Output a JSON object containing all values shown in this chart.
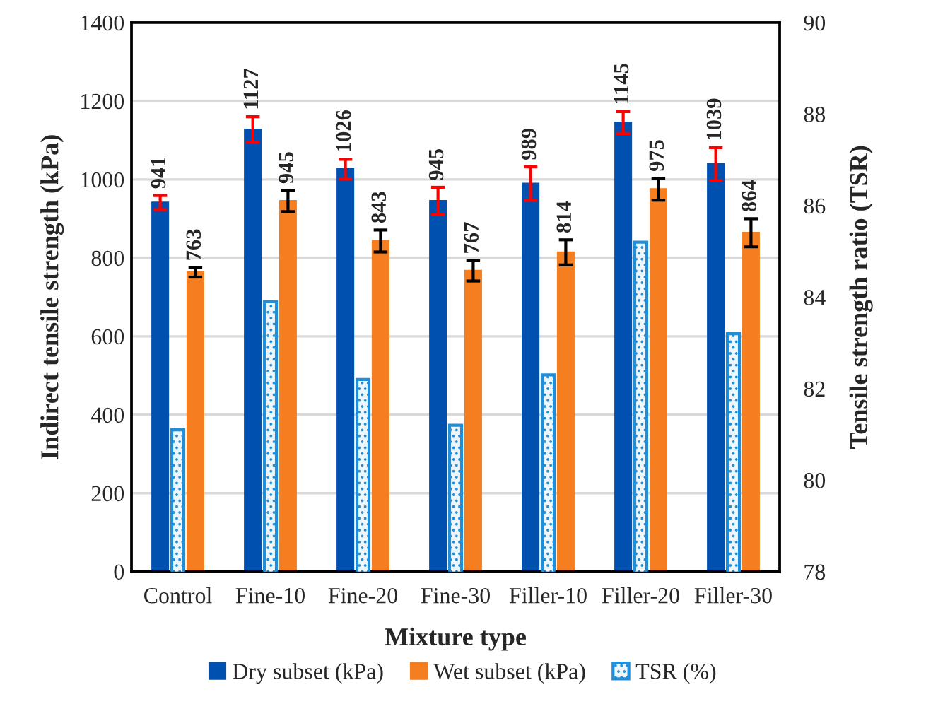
{
  "chart_data": {
    "type": "bar",
    "xlabel": "Mixture type",
    "ylabel": "Indirect tensile strength (kPa)",
    "y2label": "Tensile strength ratio (TSR)",
    "categories": [
      "Control",
      "Fine-10",
      "Fine-20",
      "Fine-30",
      "Filler-10",
      "Filler-20",
      "Filler-30"
    ],
    "series": [
      {
        "name": "Dry subset (kPa)",
        "color": "#0050b0",
        "values": [
          941,
          1127,
          1026,
          945,
          989,
          1145,
          1039
        ],
        "errors": [
          18,
          33,
          25,
          35,
          43,
          28,
          42
        ],
        "value_labels": [
          "941",
          "1127",
          "1026",
          "945",
          "989",
          "1145",
          "1039"
        ]
      },
      {
        "name": "Wet subset (kPa)",
        "color": "#f47e20",
        "values": [
          763,
          945,
          843,
          767,
          814,
          975,
          864
        ],
        "errors": [
          12,
          27,
          28,
          26,
          32,
          28,
          36
        ],
        "value_labels": [
          "763",
          "945",
          "843",
          "767",
          "814",
          "975",
          "864"
        ]
      },
      {
        "name": "TSR (%)",
        "color": "#1e8fd8",
        "axis": "y2",
        "values": [
          81.1,
          83.9,
          82.2,
          81.2,
          82.3,
          85.2,
          83.2
        ]
      }
    ],
    "ylim": [
      0,
      1400
    ],
    "yticks": [
      0,
      200,
      400,
      600,
      800,
      1000,
      1200,
      1400
    ],
    "y2lim": [
      78,
      90
    ],
    "y2ticks": [
      78,
      80,
      82,
      84,
      86,
      88,
      90
    ],
    "grid": "y",
    "legend": "bottom"
  }
}
